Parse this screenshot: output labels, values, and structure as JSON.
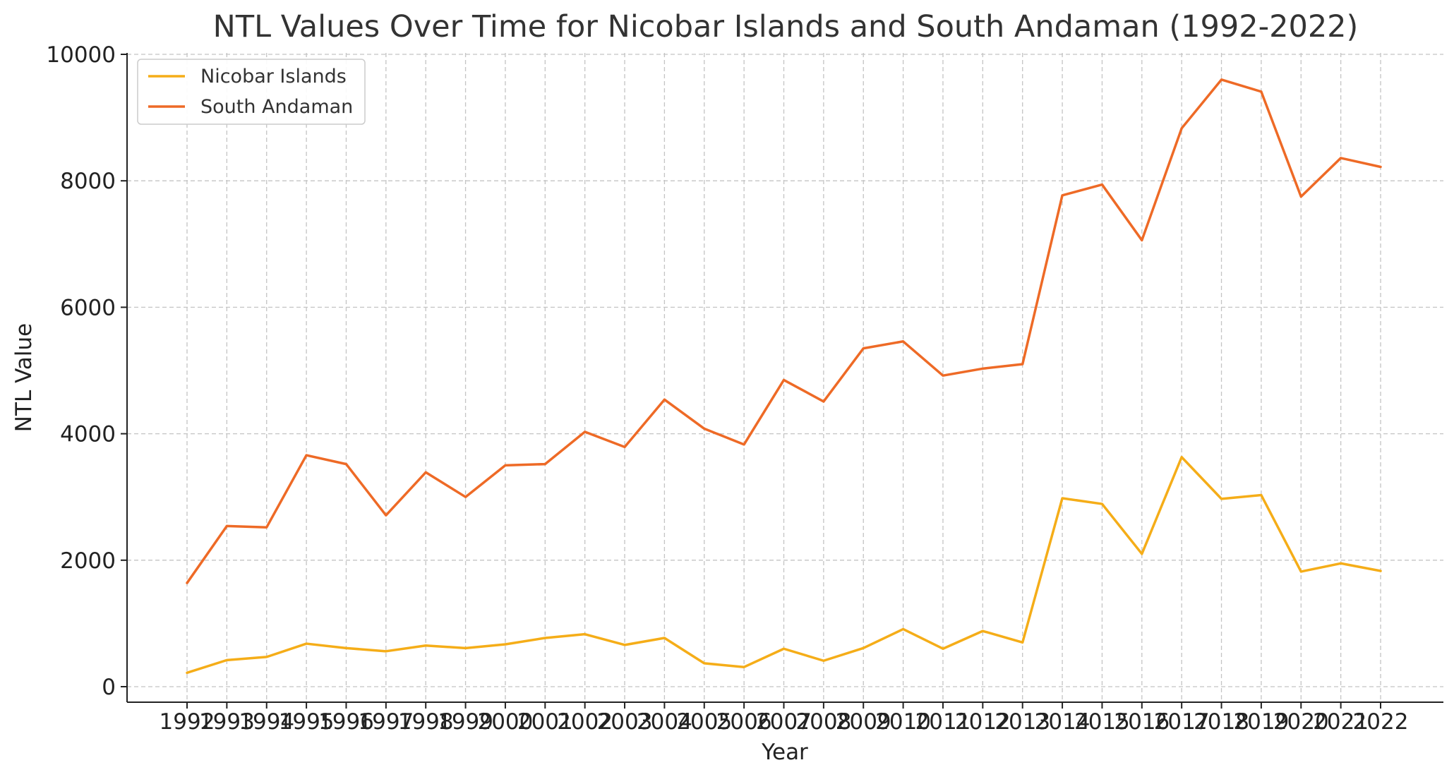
{
  "chart_data": {
    "type": "line",
    "title": "NTL Values Over Time for Nicobar Islands and South Andaman (1992-2022)",
    "xlabel": "Year",
    "ylabel": "NTL Value",
    "ylim": [
      -250,
      10000
    ],
    "yticks": [
      0,
      2000,
      4000,
      6000,
      8000,
      10000
    ],
    "grid": true,
    "legend_position": "top-left",
    "categories": [
      "1992",
      "1993",
      "1994",
      "1995",
      "1996",
      "1997",
      "1998",
      "1999",
      "2000",
      "2001",
      "2002",
      "2003",
      "2004",
      "2005",
      "2006",
      "2007",
      "2008",
      "2009",
      "2010",
      "2011",
      "2012",
      "2013",
      "2014",
      "2015",
      "2016",
      "2017",
      "2018",
      "2019",
      "2020",
      "2021",
      "2022"
    ],
    "series": [
      {
        "name": "Nicobar Islands",
        "color": "#f5ad18",
        "values": [
          220,
          420,
          470,
          680,
          610,
          560,
          650,
          610,
          670,
          770,
          830,
          660,
          770,
          370,
          310,
          600,
          410,
          610,
          910,
          600,
          880,
          700,
          2980,
          2890,
          2100,
          3630,
          2970,
          3030,
          1820,
          1950,
          1830
        ]
      },
      {
        "name": "South Andaman",
        "color": "#ee6a26",
        "values": [
          1640,
          2540,
          2520,
          3660,
          3520,
          2710,
          3390,
          3000,
          3500,
          3520,
          4030,
          3790,
          4540,
          4080,
          3830,
          4850,
          4510,
          5350,
          5460,
          4920,
          5030,
          5100,
          7770,
          7940,
          7060,
          8830,
          9600,
          9410,
          7750,
          8360,
          8220
        ]
      }
    ]
  }
}
